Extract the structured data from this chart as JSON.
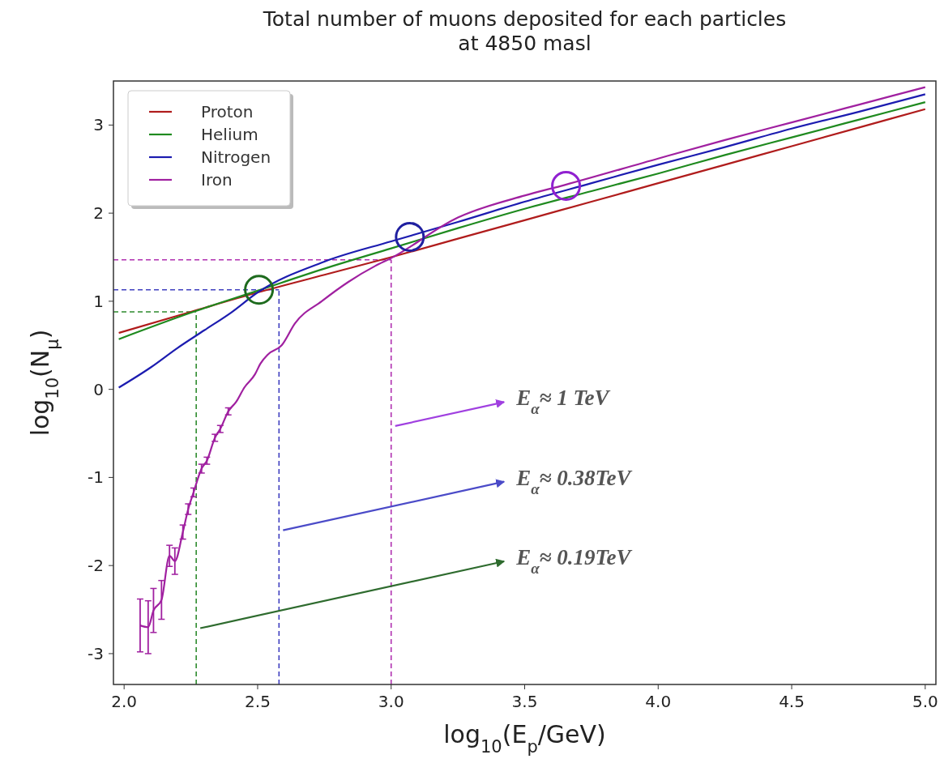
{
  "chart_data": {
    "type": "line",
    "title": "Total number of muons deposited for each particles\nat 4850 masl",
    "xlabel": "log$_{10}$(E$_{p}$/GeV)",
    "ylabel": "log$_{10}$(N$_{μ}$)",
    "xlim": [
      1.96,
      5.04
    ],
    "ylim": [
      -3.35,
      3.5
    ],
    "xticks": [
      {
        "value": 2,
        "label": "2.0"
      },
      {
        "value": 2.5,
        "label": "2.5"
      },
      {
        "value": 3,
        "label": "3.0"
      },
      {
        "value": 3.5,
        "label": "3.5"
      },
      {
        "value": 4,
        "label": "4.0"
      },
      {
        "value": 4.5,
        "label": "4.5"
      },
      {
        "value": 5,
        "label": "5.0"
      }
    ],
    "yticks": [
      -3,
      -2,
      -1,
      0,
      1,
      2,
      3
    ],
    "grid": false,
    "legend": "top left",
    "line_style": "solid",
    "series": [
      {
        "name": "Proton",
        "color": "#b01c1c",
        "x": [
          1.98,
          2.25,
          2.5,
          2.75,
          3.0,
          3.25,
          3.5,
          3.75,
          4.0,
          4.25,
          4.5,
          4.75,
          5.0
        ],
        "values": [
          0.64,
          0.88,
          1.1,
          1.3,
          1.5,
          1.71,
          1.92,
          2.13,
          2.34,
          2.55,
          2.76,
          2.97,
          3.18
        ]
      },
      {
        "name": "Helium",
        "color": "#1f8a1f",
        "x": [
          1.98,
          2.25,
          2.5,
          2.75,
          3.0,
          3.25,
          3.5,
          3.75,
          4.0,
          4.25,
          4.5,
          4.75,
          5.0
        ],
        "values": [
          0.57,
          0.87,
          1.12,
          1.37,
          1.6,
          1.83,
          2.05,
          2.25,
          2.45,
          2.66,
          2.86,
          3.06,
          3.26
        ]
      },
      {
        "name": "Nitrogen",
        "color": "#1c1cb0",
        "x": [
          1.98,
          2.1,
          2.2,
          2.3,
          2.4,
          2.5,
          2.75,
          3.0,
          3.25,
          3.5,
          3.75,
          4.0,
          4.25,
          4.5,
          4.75,
          5.0
        ],
        "values": [
          0.02,
          0.25,
          0.47,
          0.67,
          0.87,
          1.1,
          1.45,
          1.68,
          1.9,
          2.13,
          2.34,
          2.55,
          2.75,
          2.96,
          3.15,
          3.35
        ]
      },
      {
        "name": "Iron",
        "color": "#a020a0",
        "x": [
          2.06,
          2.09,
          2.11,
          2.14,
          2.17,
          2.19,
          2.22,
          2.24,
          2.26,
          2.29,
          2.31,
          2.34,
          2.36,
          2.39,
          2.42,
          2.45,
          2.49,
          2.51,
          2.54,
          2.59,
          2.64,
          2.74,
          2.84,
          2.94,
          3.0,
          3.25,
          3.5,
          3.65,
          4.0,
          4.25,
          4.5,
          4.75,
          5.0
        ],
        "values": [
          -2.68,
          -2.7,
          -2.51,
          -2.39,
          -1.89,
          -1.95,
          -1.62,
          -1.36,
          -1.17,
          -0.9,
          -0.81,
          -0.55,
          -0.45,
          -0.25,
          -0.14,
          0.02,
          0.17,
          0.29,
          0.4,
          0.5,
          0.75,
          1.0,
          1.22,
          1.4,
          1.49,
          1.95,
          2.2,
          2.32,
          2.62,
          2.83,
          3.03,
          3.23,
          3.43
        ],
        "errors": [
          0.3,
          0.3,
          0.25,
          0.22,
          0.12,
          0.15,
          0.08,
          0.06,
          0.05,
          0.05,
          0.04,
          0.04,
          0.04,
          0.04,
          null,
          null,
          null,
          null,
          null,
          null,
          null,
          null,
          null,
          null,
          null,
          null,
          null,
          null,
          null,
          null,
          null,
          null,
          null
        ]
      }
    ],
    "ref_lines": [
      {
        "axis": "x",
        "value": 2.27,
        "color": "#2e8b2e",
        "line_style": "dashed"
      },
      {
        "axis": "x",
        "value": 2.58,
        "color": "#4040c0",
        "line_style": "dashed"
      },
      {
        "axis": "x",
        "value": 3.0,
        "color": "#b030b0",
        "line_style": "dashed"
      },
      {
        "axis": "y",
        "value": 0.88,
        "color": "#2e8b2e",
        "line_style": "dashed"
      },
      {
        "axis": "y",
        "value": 1.13,
        "color": "#4040c0",
        "line_style": "dashed"
      },
      {
        "axis": "y",
        "value": 1.47,
        "color": "#b030b0",
        "line_style": "dashed"
      }
    ],
    "annotations": [
      "E$_{α}$≈ 0.19TeV",
      "E$_{α}$≈ 0.38TeV",
      "E$_{α}$≈ 1 TeV"
    ]
  }
}
